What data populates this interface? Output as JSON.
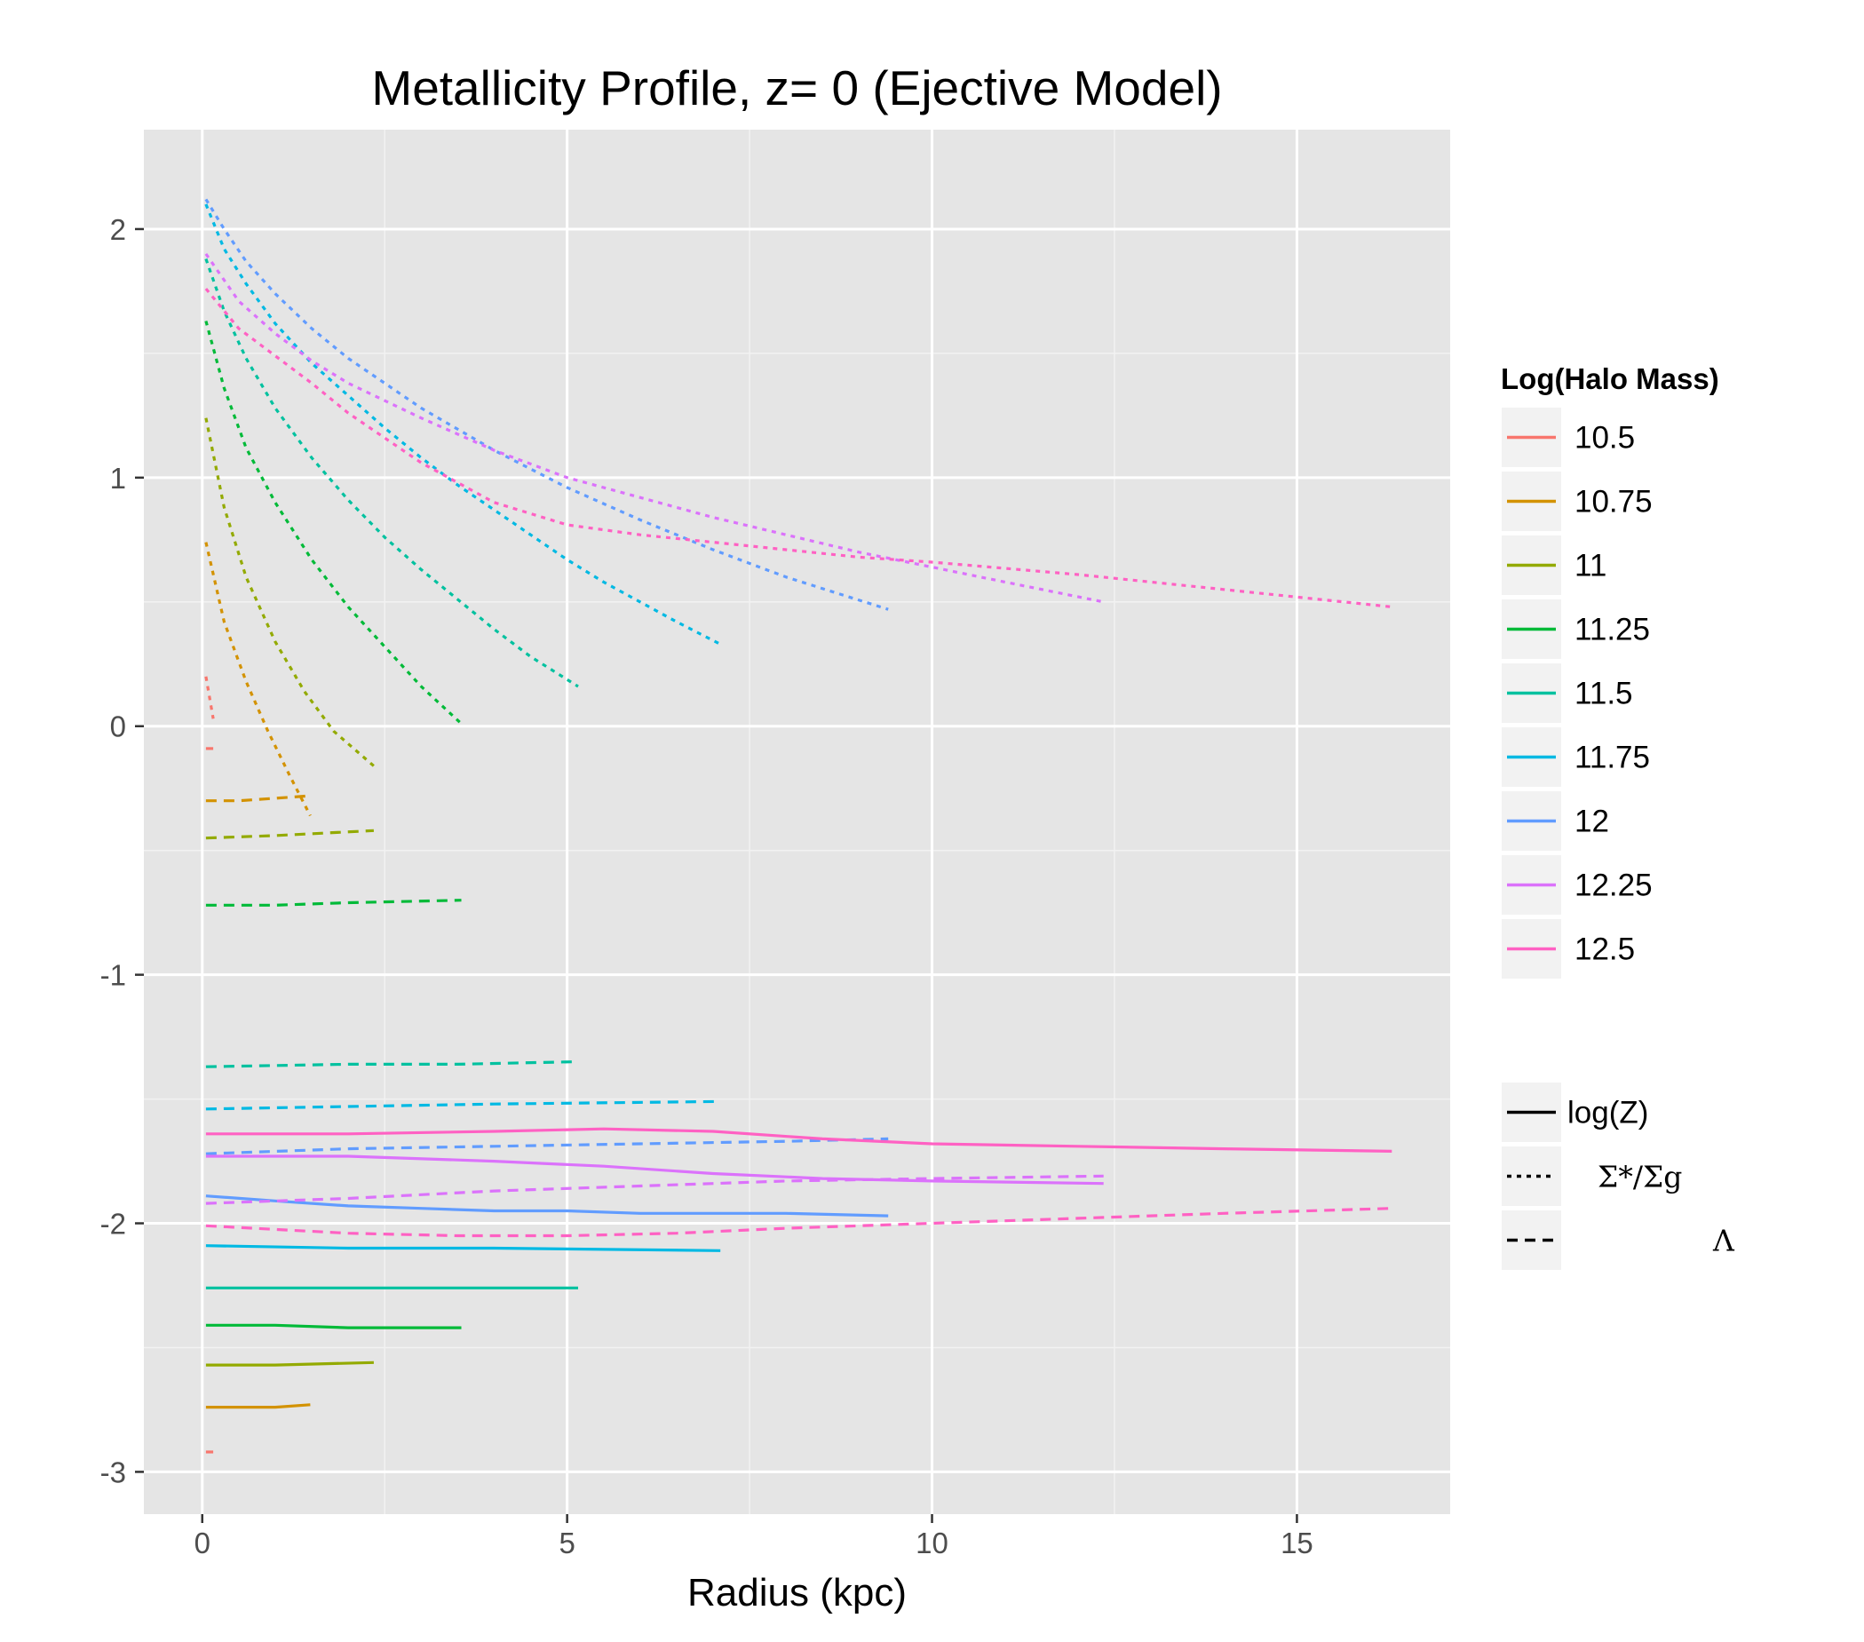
{
  "chart_data": {
    "type": "line",
    "title": "Metallicity Profile, z= 0 (Ejective Model)",
    "xlabel": "Radius (kpc)",
    "ylabel": "",
    "xlim": [
      -0.8,
      17.1
    ],
    "ylim": [
      -3.17,
      2.4
    ],
    "xticks": [
      0,
      5,
      10,
      15
    ],
    "xtick_labels": [
      "0",
      "5",
      "10",
      "15"
    ],
    "yticks": [
      -3,
      -2,
      -1,
      0,
      1,
      2
    ],
    "ytick_labels": [
      "-3",
      "-2",
      "-1",
      "0",
      "1",
      "2"
    ],
    "grid": true,
    "legend_position": "right",
    "legend_color_title": "Log(Halo Mass)",
    "legend_linetype_labels": [
      "log(Z)",
      "Σ*/Σg",
      "Λ"
    ],
    "series": [
      {
        "name": "10.5",
        "color": "#F8766D",
        "logZ": {
          "x": [
            0.05,
            0.15
          ],
          "y": [
            -2.92,
            -2.92
          ]
        },
        "ratio": {
          "x": [
            0.05,
            0.15
          ],
          "y": [
            0.2,
            0.03
          ]
        },
        "lambda": {
          "x": [
            0.05,
            0.15
          ],
          "y": [
            -0.09,
            -0.09
          ]
        }
      },
      {
        "name": "10.75",
        "color": "#D39200",
        "logZ": {
          "x": [
            0.05,
            0.5,
            1.0,
            1.48
          ],
          "y": [
            -2.74,
            -2.74,
            -2.74,
            -2.73
          ]
        },
        "ratio": {
          "x": [
            0.05,
            0.3,
            0.6,
            0.9,
            1.2,
            1.48
          ],
          "y": [
            0.74,
            0.42,
            0.18,
            -0.02,
            -0.2,
            -0.36
          ]
        },
        "lambda": {
          "x": [
            0.05,
            0.5,
            1.0,
            1.48
          ],
          "y": [
            -0.3,
            -0.3,
            -0.29,
            -0.28
          ]
        }
      },
      {
        "name": "11",
        "color": "#93AA00",
        "logZ": {
          "x": [
            0.05,
            1.0,
            2.35
          ],
          "y": [
            -2.57,
            -2.57,
            -2.56
          ]
        },
        "ratio": {
          "x": [
            0.05,
            0.3,
            0.6,
            1.0,
            1.4,
            1.8,
            2.35
          ],
          "y": [
            1.24,
            0.88,
            0.6,
            0.34,
            0.14,
            -0.02,
            -0.16
          ]
        },
        "lambda": {
          "x": [
            0.05,
            1.0,
            2.35
          ],
          "y": [
            -0.45,
            -0.44,
            -0.42
          ]
        }
      },
      {
        "name": "11.25",
        "color": "#00BA38",
        "logZ": {
          "x": [
            0.05,
            1.0,
            2.0,
            3.55
          ],
          "y": [
            -2.41,
            -2.41,
            -2.42,
            -2.42
          ]
        },
        "ratio": {
          "x": [
            0.05,
            0.3,
            0.6,
            1.0,
            1.5,
            2.0,
            2.5,
            3.0,
            3.55
          ],
          "y": [
            1.63,
            1.36,
            1.12,
            0.9,
            0.67,
            0.48,
            0.32,
            0.16,
            0.01
          ]
        },
        "lambda": {
          "x": [
            0.05,
            1.0,
            2.0,
            3.55
          ],
          "y": [
            -0.72,
            -0.72,
            -0.71,
            -0.7
          ]
        }
      },
      {
        "name": "11.5",
        "color": "#00C19F",
        "logZ": {
          "x": [
            0.05,
            2.0,
            3.5,
            5.15
          ],
          "y": [
            -2.26,
            -2.26,
            -2.26,
            -2.26
          ]
        },
        "ratio": {
          "x": [
            0.05,
            0.3,
            0.6,
            1.0,
            1.5,
            2.0,
            2.5,
            3.0,
            3.5,
            4.0,
            4.5,
            5.15
          ],
          "y": [
            1.88,
            1.67,
            1.48,
            1.28,
            1.08,
            0.91,
            0.76,
            0.63,
            0.51,
            0.39,
            0.28,
            0.16
          ]
        },
        "lambda": {
          "x": [
            0.05,
            2.0,
            3.5,
            5.1
          ],
          "y": [
            -1.37,
            -1.36,
            -1.36,
            -1.35
          ]
        }
      },
      {
        "name": "11.75",
        "color": "#00B9E3",
        "logZ": {
          "x": [
            0.05,
            2.0,
            4.0,
            7.1
          ],
          "y": [
            -2.09,
            -2.1,
            -2.1,
            -2.11
          ]
        },
        "ratio": {
          "x": [
            0.05,
            0.3,
            0.6,
            1.0,
            1.5,
            2.0,
            2.5,
            3.0,
            3.5,
            4.0,
            4.5,
            5.0,
            5.5,
            6.0,
            6.5,
            7.1
          ],
          "y": [
            2.1,
            1.92,
            1.78,
            1.62,
            1.46,
            1.33,
            1.2,
            1.08,
            0.97,
            0.87,
            0.77,
            0.67,
            0.58,
            0.5,
            0.42,
            0.33
          ]
        },
        "lambda": {
          "x": [
            0.05,
            2.0,
            4.0,
            7.05
          ],
          "y": [
            -1.54,
            -1.53,
            -1.52,
            -1.51
          ]
        }
      },
      {
        "name": "12",
        "color": "#619CFF",
        "logZ": {
          "x": [
            0.05,
            1.0,
            2.0,
            3.0,
            4.0,
            5.0,
            6.0,
            7.0,
            8.0,
            9.4
          ],
          "y": [
            -1.89,
            -1.91,
            -1.93,
            -1.94,
            -1.95,
            -1.95,
            -1.96,
            -1.96,
            -1.96,
            -1.97
          ]
        },
        "ratio": {
          "x": [
            0.05,
            0.3,
            0.6,
            1.0,
            1.5,
            2.0,
            2.5,
            3.0,
            4.0,
            5.0,
            6.0,
            7.0,
            8.0,
            9.4
          ],
          "y": [
            2.12,
            2.0,
            1.87,
            1.74,
            1.6,
            1.48,
            1.38,
            1.28,
            1.11,
            0.96,
            0.83,
            0.71,
            0.6,
            0.47
          ]
        },
        "lambda": {
          "x": [
            0.05,
            2.0,
            4.0,
            6.0,
            8.0,
            9.4
          ],
          "y": [
            -1.72,
            -1.7,
            -1.69,
            -1.68,
            -1.67,
            -1.66
          ]
        }
      },
      {
        "name": "12.25",
        "color": "#DB72FB",
        "logZ": {
          "x": [
            0.05,
            2.0,
            4.0,
            5.5,
            7.0,
            8.5,
            10.0,
            12.35
          ],
          "y": [
            -1.73,
            -1.73,
            -1.75,
            -1.77,
            -1.8,
            -1.82,
            -1.83,
            -1.84
          ]
        },
        "ratio": {
          "x": [
            0.05,
            0.5,
            1.0,
            1.5,
            2.0,
            3.0,
            4.0,
            5.0,
            6.0,
            7.0,
            8.0,
            9.0,
            10.0,
            11.0,
            12.35
          ],
          "y": [
            1.9,
            1.71,
            1.58,
            1.47,
            1.38,
            1.24,
            1.11,
            1.0,
            0.92,
            0.84,
            0.77,
            0.7,
            0.64,
            0.58,
            0.5
          ]
        },
        "lambda": {
          "x": [
            0.05,
            2.0,
            4.0,
            6.0,
            8.0,
            10.0,
            12.35
          ],
          "y": [
            -1.92,
            -1.9,
            -1.87,
            -1.85,
            -1.83,
            -1.82,
            -1.81
          ]
        }
      },
      {
        "name": "12.5",
        "color": "#FF61C3",
        "logZ": {
          "x": [
            0.05,
            2.0,
            4.0,
            5.5,
            7.0,
            8.5,
            10.0,
            12.0,
            14.0,
            16.3
          ],
          "y": [
            -1.64,
            -1.64,
            -1.63,
            -1.62,
            -1.63,
            -1.66,
            -1.68,
            -1.69,
            -1.7,
            -1.71
          ]
        },
        "ratio": {
          "x": [
            0.05,
            0.5,
            1.0,
            1.5,
            2.0,
            3.0,
            4.0,
            5.0,
            6.0,
            7.0,
            8.0,
            9.0,
            10.0,
            12.0,
            14.0,
            16.3
          ],
          "y": [
            1.76,
            1.6,
            1.49,
            1.38,
            1.26,
            1.06,
            0.9,
            0.81,
            0.77,
            0.74,
            0.71,
            0.68,
            0.66,
            0.61,
            0.55,
            0.48
          ]
        },
        "lambda": {
          "x": [
            0.05,
            2.0,
            3.5,
            5.0,
            6.5,
            8.0,
            10.0,
            12.0,
            14.0,
            16.3
          ],
          "y": [
            -2.01,
            -2.04,
            -2.05,
            -2.05,
            -2.04,
            -2.02,
            -2.0,
            -1.98,
            -1.96,
            -1.94
          ]
        }
      }
    ]
  }
}
